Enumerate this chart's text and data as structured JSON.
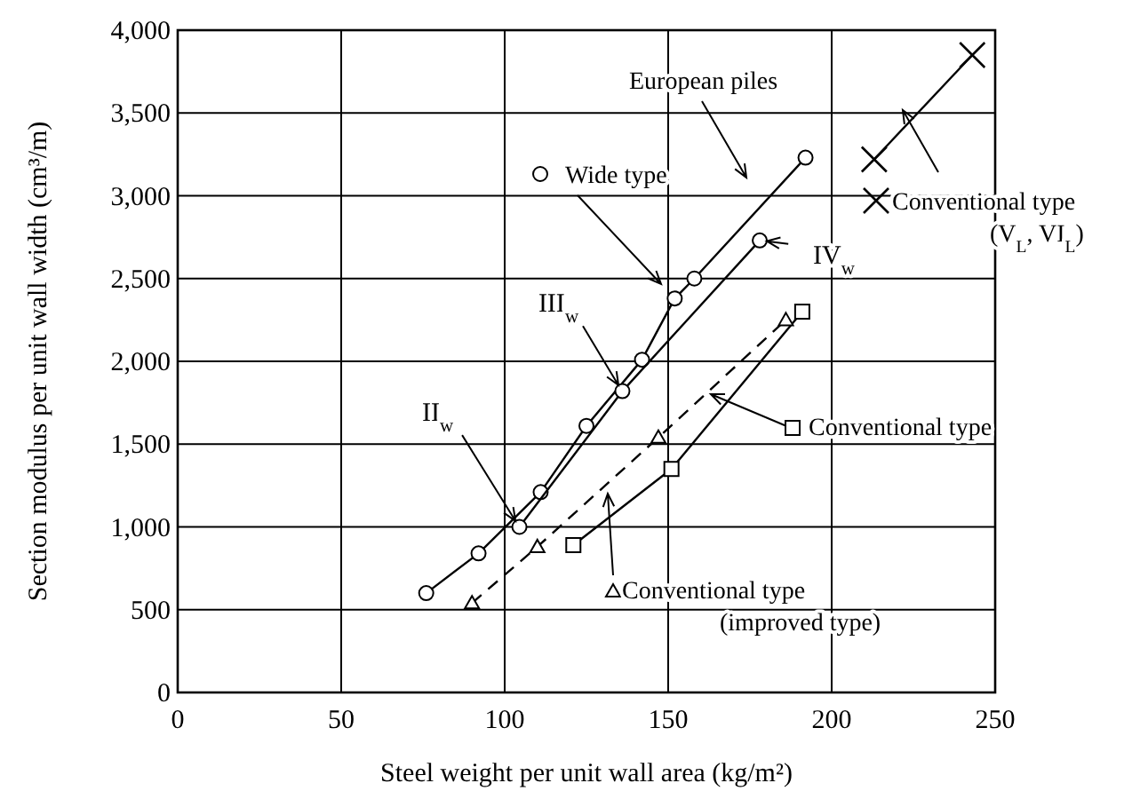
{
  "chart_data": {
    "type": "line",
    "xlabel": "Steel weight per unit wall area (kg/m²)",
    "ylabel": "Section modulus per unit wall width (cm³/m)",
    "xlim": [
      0,
      250
    ],
    "ylim": [
      0,
      4000
    ],
    "xticks": [
      0,
      50,
      100,
      150,
      200,
      250
    ],
    "yticks": [
      {
        "value": 0,
        "label": "0"
      },
      {
        "value": 500,
        "label": "500"
      },
      {
        "value": 1000,
        "label": "1,000"
      },
      {
        "value": 1500,
        "label": "1,500"
      },
      {
        "value": 2000,
        "label": "2,000"
      },
      {
        "value": 2500,
        "label": "2,500"
      },
      {
        "value": 3000,
        "label": "3,000"
      },
      {
        "value": 3500,
        "label": "3,500"
      },
      {
        "value": 4000,
        "label": "4,000"
      }
    ],
    "grid": true,
    "legend": "right",
    "series": [
      {
        "name": "European piles",
        "color": "#000000",
        "marker": "circle",
        "line_style": "solid",
        "x": [
          76,
          92,
          111,
          125,
          142,
          152,
          158,
          192
        ],
        "values": [
          600,
          840,
          1210,
          1610,
          2010,
          2380,
          2500,
          3230
        ]
      },
      {
        "name": "Wide type",
        "color": "#000000",
        "marker": "circle",
        "line_style": "solid",
        "x": [
          104.5,
          136,
          178
        ],
        "values": [
          1000,
          1820,
          2730
        ]
      },
      {
        "name": "Conventional type",
        "color": "#000000",
        "marker": "square",
        "line_style": "solid",
        "x": [
          121,
          151,
          191
        ],
        "values": [
          890,
          1350,
          2300
        ]
      },
      {
        "name": "Conventional type\n(improved type)",
        "color": "#000000",
        "marker": "triangle",
        "line_style": "dashed",
        "x": [
          90,
          110,
          147,
          186
        ],
        "values": [
          540,
          880,
          1540,
          2250
        ]
      },
      {
        "name": "Conventional type\n(V$_{L}$,  VI$_{L}$)",
        "color": "#000000",
        "marker": "cross",
        "line_style": "solid",
        "x": [
          213,
          243
        ],
        "values": [
          3220,
          3850
        ]
      }
    ],
    "annotations": [
      {
        "text": "II$_{w}$",
        "x": 104.5,
        "y": 1000
      },
      {
        "text": "III$_{w}$",
        "x": 136,
        "y": 1820
      },
      {
        "text": "IV$_{w}$",
        "x": 178,
        "y": 2730
      }
    ]
  }
}
